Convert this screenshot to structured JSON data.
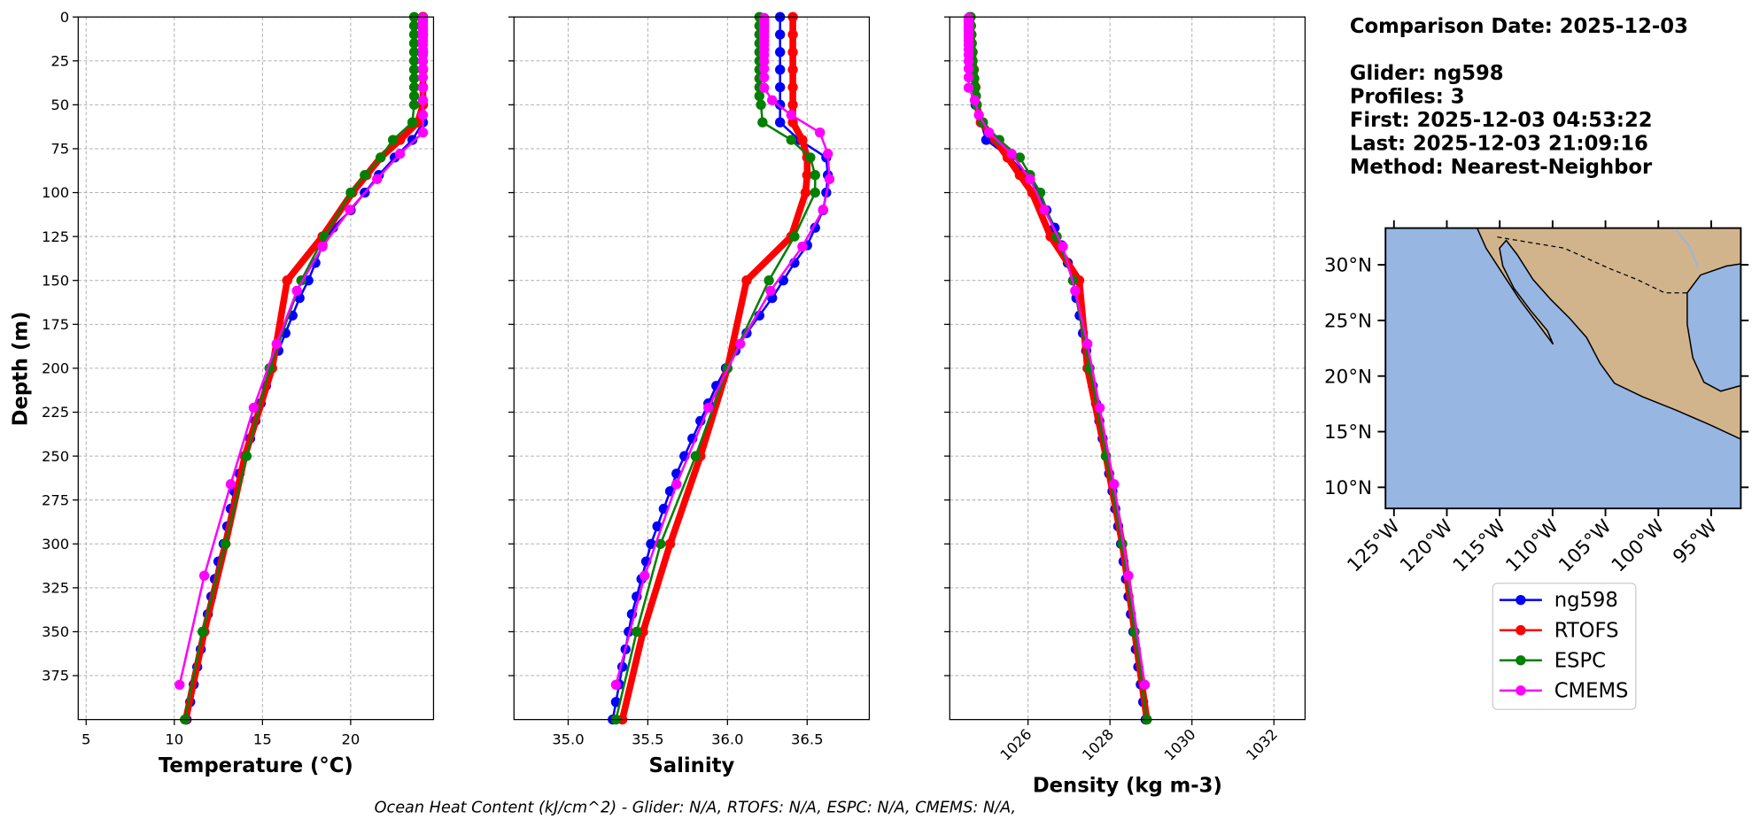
{
  "chart_data": [
    {
      "type": "line",
      "x_label": "Temperature (°C)",
      "y_label": "Depth (m)",
      "xlim": [
        4.55,
        24.7
      ],
      "xticks": [
        5,
        10,
        15,
        20
      ],
      "ylim": [
        0,
        400
      ],
      "y_inverted": true,
      "yticks": [
        0,
        25,
        50,
        75,
        100,
        125,
        150,
        175,
        200,
        225,
        250,
        275,
        300,
        325,
        350,
        375
      ],
      "ytick_labels": true,
      "grid": true,
      "legend": true,
      "series": [
        {
          "name": "ng598",
          "color": "#0000ff",
          "linewidth": 2,
          "y": [
            0,
            10,
            20,
            30,
            40,
            50,
            60,
            70,
            80,
            90,
            100,
            110,
            120,
            130,
            140,
            150,
            160,
            170,
            180,
            190,
            200,
            210,
            220,
            230,
            240,
            250,
            260,
            270,
            280,
            290,
            300,
            310,
            320,
            330,
            340,
            350,
            360,
            370,
            380,
            390,
            400
          ],
          "x": [
            24.1,
            24.1,
            24.1,
            24.1,
            24.1,
            24.1,
            24.1,
            23.5,
            22.5,
            21.6,
            20.8,
            20.0,
            19.0,
            18.4,
            18.0,
            17.6,
            17.1,
            16.7,
            16.3,
            15.9,
            15.5,
            15.2,
            14.9,
            14.6,
            14.3,
            14.0,
            13.7,
            13.4,
            13.2,
            13.0,
            12.8,
            12.5,
            12.3,
            12.1,
            11.9,
            11.7,
            11.5,
            11.3,
            11.1,
            10.9,
            10.7
          ]
        },
        {
          "name": "RTOFS",
          "color": "#ff0000",
          "linewidth": 6,
          "y": [
            0,
            10,
            20,
            30,
            40,
            50,
            60,
            70,
            80,
            90,
            100,
            125,
            150,
            200,
            250,
            300,
            350,
            400
          ],
          "x": [
            24.1,
            24.1,
            24.1,
            24.1,
            24.1,
            24.1,
            23.8,
            22.8,
            21.7,
            20.9,
            20.1,
            18.4,
            16.4,
            15.55,
            14.0,
            12.9,
            11.7,
            10.65
          ]
        },
        {
          "name": "ESPC",
          "color": "#008000",
          "linewidth": 2,
          "y": [
            0,
            5,
            10,
            15,
            20,
            25,
            30,
            35,
            40,
            45,
            50,
            60,
            70,
            80,
            90,
            100,
            125,
            150,
            200,
            250,
            300,
            350,
            400
          ],
          "x": [
            23.6,
            23.6,
            23.6,
            23.6,
            23.6,
            23.6,
            23.6,
            23.6,
            23.6,
            23.6,
            23.6,
            23.5,
            22.4,
            21.7,
            20.8,
            20.0,
            18.5,
            17.2,
            15.4,
            14.1,
            12.9,
            11.6,
            10.6
          ]
        },
        {
          "name": "CMEMS",
          "color": "#ff00ff",
          "linewidth": 2,
          "y": [
            0.5,
            1.5,
            2.6,
            3.8,
            5.1,
            6.4,
            7.9,
            9.6,
            11.4,
            13.5,
            15.8,
            18.5,
            21.6,
            25.2,
            29.4,
            34.4,
            40.3,
            47.4,
            55.8,
            65.8,
            77.9,
            92.3,
            109.7,
            130.7,
            155.9,
            186.1,
            222.5,
            266,
            318.1,
            380.2
          ],
          "x": [
            24.1,
            24.1,
            24.1,
            24.1,
            24.1,
            24.1,
            24.1,
            24.1,
            24.1,
            24.1,
            24.1,
            24.1,
            24.1,
            24.1,
            24.1,
            24.1,
            24.1,
            24.1,
            24.1,
            24.1,
            22.8,
            21.5,
            19.95,
            18.4,
            16.95,
            15.8,
            14.5,
            13.2,
            11.7,
            10.3
          ]
        }
      ]
    },
    {
      "type": "line",
      "x_label": "Salinity",
      "xlim": [
        34.66,
        36.89
      ],
      "xticks": [
        {
          "value": 35,
          "label": "35.0"
        },
        35.5,
        {
          "value": 36,
          "label": "36.0"
        },
        36.5
      ],
      "ylim": [
        0,
        400
      ],
      "y_inverted": true,
      "yticks": [
        0,
        25,
        50,
        75,
        100,
        125,
        150,
        175,
        200,
        225,
        250,
        275,
        300,
        325,
        350,
        375
      ],
      "ytick_labels": false,
      "grid": true,
      "series": [
        {
          "name": "ng598",
          "color": "#0000ff",
          "linewidth": 2,
          "y": [
            0,
            10,
            20,
            30,
            40,
            50,
            60,
            70,
            80,
            90,
            100,
            110,
            120,
            130,
            140,
            150,
            160,
            170,
            180,
            190,
            200,
            210,
            220,
            230,
            240,
            250,
            260,
            270,
            280,
            290,
            300,
            310,
            320,
            330,
            340,
            350,
            360,
            370,
            380,
            390,
            400
          ],
          "x": [
            36.33,
            36.33,
            36.33,
            36.33,
            36.33,
            36.33,
            36.33,
            36.45,
            36.62,
            36.63,
            36.62,
            36.6,
            36.55,
            36.5,
            36.42,
            36.35,
            36.28,
            36.2,
            36.12,
            36.05,
            35.99,
            35.93,
            35.88,
            35.83,
            35.78,
            35.73,
            35.68,
            35.64,
            35.6,
            35.56,
            35.52,
            35.49,
            35.46,
            35.43,
            35.4,
            35.38,
            35.36,
            35.34,
            35.32,
            35.3,
            35.28
          ]
        },
        {
          "name": "RTOFS",
          "color": "#ff0000",
          "linewidth": 6,
          "y": [
            0,
            10,
            20,
            30,
            40,
            50,
            60,
            70,
            80,
            90,
            100,
            125,
            150,
            200,
            250,
            300,
            350,
            400
          ],
          "x": [
            36.41,
            36.41,
            36.41,
            36.41,
            36.41,
            36.41,
            36.41,
            36.47,
            36.5,
            36.5,
            36.49,
            36.4,
            36.12,
            36.0,
            35.83,
            35.64,
            35.47,
            35.34
          ]
        },
        {
          "name": "ESPC",
          "color": "#008000",
          "linewidth": 2,
          "y": [
            0,
            5,
            10,
            15,
            20,
            25,
            30,
            35,
            40,
            45,
            50,
            60,
            70,
            80,
            90,
            100,
            125,
            150,
            200,
            250,
            300,
            350,
            400
          ],
          "x": [
            36.2,
            36.2,
            36.2,
            36.2,
            36.2,
            36.2,
            36.2,
            36.2,
            36.2,
            36.2,
            36.21,
            36.22,
            36.4,
            36.52,
            36.55,
            36.55,
            36.42,
            36.26,
            36.0,
            35.8,
            35.58,
            35.43,
            35.3
          ]
        },
        {
          "name": "CMEMS",
          "color": "#ff00ff",
          "linewidth": 2,
          "y": [
            0.5,
            1.5,
            2.6,
            3.8,
            5.1,
            6.4,
            7.9,
            9.6,
            11.4,
            13.5,
            15.8,
            18.5,
            21.6,
            25.2,
            29.4,
            34.4,
            40.3,
            47.4,
            55.8,
            65.8,
            77.9,
            92.3,
            109.7,
            130.7,
            155.9,
            186.1,
            222.5,
            266,
            318.1,
            380.2
          ],
          "x": [
            36.23,
            36.23,
            36.23,
            36.23,
            36.23,
            36.23,
            36.23,
            36.23,
            36.23,
            36.23,
            36.23,
            36.23,
            36.23,
            36.23,
            36.23,
            36.23,
            36.23,
            36.28,
            36.4,
            36.58,
            36.63,
            36.64,
            36.6,
            36.47,
            36.27,
            36.08,
            35.88,
            35.68,
            35.48,
            35.3
          ]
        }
      ]
    },
    {
      "type": "line",
      "x_label": "Density (kg m-3)",
      "xlim": [
        1024.09,
        1032.76
      ],
      "xticks": [
        1026,
        1028,
        1030,
        1032
      ],
      "xtick_rotation": 45,
      "ylim": [
        0,
        400
      ],
      "y_inverted": true,
      "yticks": [
        0,
        25,
        50,
        75,
        100,
        125,
        150,
        175,
        200,
        225,
        250,
        275,
        300,
        325,
        350,
        375
      ],
      "ytick_labels": false,
      "grid": true,
      "series": [
        {
          "name": "ng598",
          "color": "#0000ff",
          "linewidth": 2,
          "y": [
            0,
            10,
            20,
            30,
            40,
            50,
            60,
            70,
            80,
            90,
            100,
            110,
            120,
            130,
            140,
            150,
            160,
            170,
            180,
            190,
            200,
            210,
            220,
            230,
            240,
            250,
            260,
            270,
            280,
            290,
            300,
            310,
            320,
            330,
            340,
            350,
            360,
            370,
            380,
            390,
            400
          ],
          "x": [
            1024.58,
            1024.6,
            1024.62,
            1024.65,
            1024.68,
            1024.72,
            1024.85,
            1024.98,
            1025.56,
            1025.95,
            1026.27,
            1026.45,
            1026.65,
            1026.82,
            1026.97,
            1027.1,
            1027.18,
            1027.26,
            1027.34,
            1027.42,
            1027.5,
            1027.58,
            1027.66,
            1027.74,
            1027.82,
            1027.9,
            1027.98,
            1028.06,
            1028.13,
            1028.2,
            1028.27,
            1028.33,
            1028.39,
            1028.45,
            1028.51,
            1028.57,
            1028.63,
            1028.69,
            1028.75,
            1028.81,
            1028.87
          ]
        },
        {
          "name": "RTOFS",
          "color": "#ff0000",
          "linewidth": 6,
          "y": [
            0,
            10,
            20,
            30,
            40,
            50,
            60,
            70,
            80,
            90,
            100,
            125,
            150,
            200,
            250,
            300,
            350,
            400
          ],
          "x": [
            1024.6,
            1024.62,
            1024.65,
            1024.68,
            1024.72,
            1024.75,
            1024.85,
            1025.2,
            1025.5,
            1025.8,
            1026.1,
            1026.55,
            1027.25,
            1027.45,
            1027.9,
            1028.3,
            1028.6,
            1028.9
          ]
        },
        {
          "name": "ESPC",
          "color": "#008000",
          "linewidth": 2,
          "y": [
            0,
            5,
            10,
            15,
            20,
            25,
            30,
            35,
            40,
            45,
            50,
            60,
            70,
            80,
            90,
            100,
            125,
            150,
            200,
            250,
            300,
            350,
            400
          ],
          "x": [
            1024.6,
            1024.61,
            1024.62,
            1024.63,
            1024.64,
            1024.65,
            1024.67,
            1024.69,
            1024.71,
            1024.73,
            1024.75,
            1024.9,
            1025.3,
            1025.8,
            1026.05,
            1026.3,
            1026.7,
            1027.1,
            1027.5,
            1027.9,
            1028.3,
            1028.6,
            1028.9
          ]
        },
        {
          "name": "CMEMS",
          "color": "#ff00ff",
          "linewidth": 2,
          "y": [
            0.5,
            1.5,
            2.6,
            3.8,
            5.1,
            6.4,
            7.9,
            9.6,
            11.4,
            13.5,
            15.8,
            18.5,
            21.6,
            25.2,
            29.4,
            34.4,
            40.3,
            47.4,
            55.8,
            65.8,
            77.9,
            92.3,
            109.7,
            130.7,
            155.9,
            186.1,
            222.5,
            266,
            318.1,
            380.2
          ],
          "x": [
            1024.55,
            1024.55,
            1024.55,
            1024.55,
            1024.55,
            1024.55,
            1024.55,
            1024.55,
            1024.55,
            1024.55,
            1024.55,
            1024.55,
            1024.55,
            1024.55,
            1024.55,
            1024.55,
            1024.55,
            1024.7,
            1024.8,
            1025.05,
            1025.6,
            1026.05,
            1026.4,
            1026.85,
            1027.15,
            1027.45,
            1027.75,
            1028.1,
            1028.45,
            1028.85
          ]
        }
      ]
    }
  ],
  "map": {
    "lonlim": [
      -125.8,
      -92.2
    ],
    "latlim": [
      8.1,
      33.3
    ],
    "lonticks": [
      {
        "value": -125,
        "label": "125°W"
      },
      {
        "value": -120,
        "label": "120°W"
      },
      {
        "value": -115,
        "label": "115°W"
      },
      {
        "value": -110,
        "label": "110°W"
      },
      {
        "value": -105,
        "label": "105°W"
      },
      {
        "value": -100,
        "label": "100°W"
      },
      {
        "value": -95,
        "label": "95°W"
      }
    ],
    "latticks": [
      {
        "value": 30,
        "label": "30°N"
      },
      {
        "value": 25,
        "label": "25°N"
      },
      {
        "value": 20,
        "label": "20°N"
      },
      {
        "value": 15,
        "label": "15°N"
      },
      {
        "value": 10,
        "label": "10°N"
      }
    ]
  },
  "info": [
    "Comparison Date: 2025-12-03",
    "Glider: ng598",
    "Profiles: 3",
    "First: 2025-12-03 04:53:22",
    "Last: 2025-12-03 21:09:16",
    "Method: Nearest-Neighbor"
  ],
  "footer": "Ocean Heat Content (kJ/cm^2) - Glider: N/A,  RTOFS: N/A,  ESPC: N/A,  CMEMS: N/A,"
}
